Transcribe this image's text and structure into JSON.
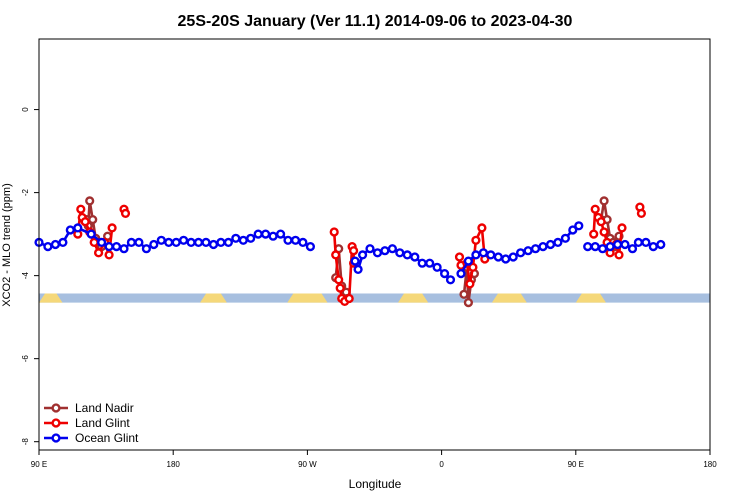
{
  "chart_data": {
    "type": "line",
    "title": "25S-20S January (Ver 11.1)   2014-09-06 to 2023-04-30",
    "xlabel": "Longitude",
    "ylabel": "XCO2 - MLO trend (ppm)",
    "x_tick_labels": [
      "90 E",
      "180",
      "90 W",
      "0",
      "90 E",
      "180"
    ],
    "x_tick_values": [
      90,
      180,
      270,
      360,
      450,
      540
    ],
    "xlim": [
      90,
      540
    ],
    "y_tick_labels": [
      "0",
      "-2",
      "-4",
      "-6",
      "-8"
    ],
    "y_tick_values": [
      0,
      -2,
      -4,
      -6,
      -8
    ],
    "ylim": [
      -8.2,
      1.7
    ],
    "grid": false,
    "legend_position": "bottom-left",
    "surface_band": {
      "y_range": [
        -4.43,
        -4.65
      ],
      "ocean_color": "#a7bfdf",
      "land_color": "#f5d87a",
      "land_spans": [
        [
          115,
          150
        ],
        [
          355,
          395
        ],
        [
          485,
          545
        ],
        [
          650,
          695
        ],
        [
          790,
          842
        ],
        [
          915,
          960
        ]
      ]
    },
    "series": [
      {
        "name": "Land Nadir",
        "color": "#a03030",
        "segments": [
          [
            [
              122,
              -2.65
            ],
            [
              123,
              -2.8
            ],
            [
              124,
              -2.2
            ],
            [
              126,
              -2.65
            ],
            [
              128,
              -3.1
            ],
            [
              130,
              -3.2
            ],
            [
              132,
              -3.3
            ],
            [
              136,
              -3.05
            ]
          ],
          [
            [
              289,
              -4.05
            ],
            [
              291,
              -3.35
            ],
            [
              293,
              -4.25
            ],
            [
              296,
              -4.4
            ],
            [
              297,
              -4.55
            ]
          ],
          [
            [
              375,
              -4.45
            ],
            [
              377,
              -3.8
            ],
            [
              378,
              -4.65
            ],
            [
              380,
              -4.1
            ],
            [
              382,
              -3.95
            ]
          ],
          [
            [
              467,
              -2.65
            ],
            [
              469,
              -2.2
            ],
            [
              471,
              -2.65
            ],
            [
              473,
              -3.1
            ],
            [
              475,
              -3.2
            ],
            [
              476,
              -3.3
            ],
            [
              479,
              -3.05
            ]
          ]
        ]
      },
      {
        "name": "Land Glint",
        "color": "#ee0000",
        "segments": [
          [
            [
              116,
              -3.0
            ],
            [
              118,
              -2.4
            ],
            [
              119,
              -2.6
            ],
            [
              121,
              -2.7
            ],
            [
              124,
              -2.95
            ],
            [
              127,
              -3.2
            ],
            [
              130,
              -3.45
            ],
            [
              134,
              -3.2
            ],
            [
              137,
              -3.5
            ],
            [
              139,
              -2.85
            ]
          ],
          [
            [
              147,
              -2.4
            ],
            [
              148,
              -2.5
            ]
          ],
          [
            [
              288,
              -2.95
            ],
            [
              289,
              -3.5
            ],
            [
              291,
              -4.1
            ],
            [
              292,
              -4.3
            ],
            [
              293,
              -4.55
            ],
            [
              295,
              -4.62
            ],
            [
              298,
              -4.55
            ],
            [
              300,
              -3.3
            ],
            [
              301,
              -3.4
            ],
            [
              301,
              -3.7
            ]
          ],
          [
            [
              372,
              -3.55
            ],
            [
              373,
              -3.75
            ],
            [
              377,
              -3.7
            ],
            [
              379,
              -4.2
            ],
            [
              381,
              -3.8
            ],
            [
              383,
              -3.15
            ],
            [
              387,
              -2.85
            ],
            [
              389,
              -3.6
            ]
          ],
          [
            [
              462,
              -3.0
            ],
            [
              463,
              -2.4
            ],
            [
              465,
              -2.6
            ],
            [
              467,
              -2.7
            ],
            [
              469,
              -2.95
            ],
            [
              471,
              -3.2
            ],
            [
              473,
              -3.45
            ],
            [
              477,
              -3.25
            ],
            [
              479,
              -3.5
            ],
            [
              481,
              -2.85
            ]
          ],
          [
            [
              493,
              -2.35
            ],
            [
              494,
              -2.5
            ]
          ]
        ]
      },
      {
        "name": "Ocean Glint",
        "color": "#0000ee",
        "segments": [
          [
            [
              90,
              -3.2
            ],
            [
              96,
              -3.3
            ],
            [
              101,
              -3.25
            ],
            [
              106,
              -3.2
            ],
            [
              111,
              -2.9
            ],
            [
              116,
              -2.85
            ],
            [
              125,
              -3.0
            ],
            [
              132,
              -3.2
            ],
            [
              137,
              -3.3
            ],
            [
              142,
              -3.3
            ],
            [
              147,
              -3.35
            ],
            [
              152,
              -3.2
            ],
            [
              157,
              -3.2
            ],
            [
              162,
              -3.35
            ],
            [
              167,
              -3.25
            ],
            [
              172,
              -3.15
            ],
            [
              177,
              -3.2
            ],
            [
              182,
              -3.2
            ],
            [
              187,
              -3.15
            ],
            [
              192,
              -3.2
            ],
            [
              197,
              -3.2
            ],
            [
              202,
              -3.2
            ],
            [
              207,
              -3.25
            ],
            [
              212,
              -3.2
            ],
            [
              217,
              -3.2
            ],
            [
              222,
              -3.1
            ],
            [
              227,
              -3.15
            ],
            [
              232,
              -3.1
            ],
            [
              237,
              -3.0
            ],
            [
              242,
              -3.0
            ],
            [
              247,
              -3.05
            ],
            [
              252,
              -3.0
            ],
            [
              257,
              -3.15
            ],
            [
              262,
              -3.15
            ],
            [
              267,
              -3.2
            ],
            [
              272,
              -3.3
            ]
          ],
          [
            [
              302,
              -3.65
            ],
            [
              304,
              -3.85
            ],
            [
              307,
              -3.5
            ],
            [
              312,
              -3.35
            ],
            [
              317,
              -3.45
            ],
            [
              322,
              -3.4
            ],
            [
              327,
              -3.35
            ],
            [
              332,
              -3.45
            ],
            [
              337,
              -3.5
            ],
            [
              342,
              -3.55
            ],
            [
              347,
              -3.7
            ],
            [
              352,
              -3.7
            ],
            [
              357,
              -3.8
            ],
            [
              362,
              -3.95
            ],
            [
              366,
              -4.1
            ]
          ],
          [
            [
              373,
              -3.95
            ],
            [
              378,
              -3.65
            ],
            [
              383,
              -3.5
            ],
            [
              388,
              -3.45
            ],
            [
              393,
              -3.5
            ],
            [
              398,
              -3.55
            ],
            [
              403,
              -3.6
            ],
            [
              408,
              -3.55
            ],
            [
              413,
              -3.45
            ],
            [
              418,
              -3.4
            ],
            [
              423,
              -3.35
            ],
            [
              428,
              -3.3
            ],
            [
              433,
              -3.25
            ],
            [
              438,
              -3.2
            ],
            [
              443,
              -3.1
            ],
            [
              448,
              -2.9
            ],
            [
              452,
              -2.8
            ]
          ],
          [
            [
              458,
              -3.3
            ],
            [
              463,
              -3.3
            ],
            [
              468,
              -3.35
            ],
            [
              473,
              -3.3
            ],
            [
              478,
              -3.25
            ],
            [
              483,
              -3.25
            ],
            [
              488,
              -3.35
            ],
            [
              492,
              -3.2
            ],
            [
              497,
              -3.2
            ],
            [
              502,
              -3.3
            ],
            [
              507,
              -3.25
            ]
          ]
        ]
      }
    ]
  }
}
